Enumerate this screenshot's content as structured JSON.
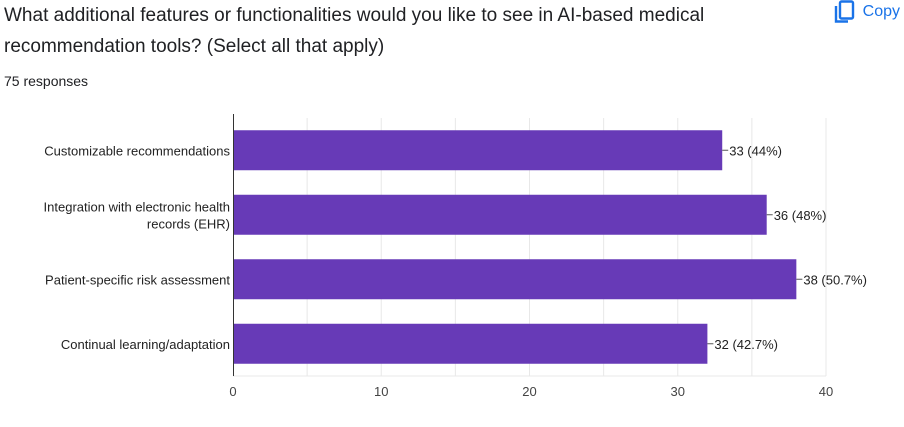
{
  "question": {
    "title": "What additional features or functionalities would you like to see in AI-based medical recommendation tools? (Select all that apply)",
    "response_count": "75 responses"
  },
  "copy_button": {
    "label": "Copy",
    "icon": "copy-icon",
    "color": "#1a73e8"
  },
  "colors": {
    "bar": "#673ab7",
    "grid": "#e8e8e8",
    "axis": "#333333",
    "label_text": "#222222",
    "tick_text": "#444444"
  },
  "chart_data": {
    "type": "bar",
    "orientation": "horizontal",
    "categories": [
      [
        "Customizable recommendations"
      ],
      [
        "Integration with electronic health",
        "records (EHR)"
      ],
      [
        "Patient-specific risk assessment"
      ],
      [
        "Continual learning/adaptation"
      ]
    ],
    "values": [
      33,
      36,
      38,
      32
    ],
    "data_labels": [
      "33 (44%)",
      "36 (48%)",
      "38 (50.7%)",
      "32 (42.7%)"
    ],
    "xlim": [
      0,
      40
    ],
    "xticks": [
      0,
      10,
      20,
      30,
      40
    ],
    "grid": true
  }
}
